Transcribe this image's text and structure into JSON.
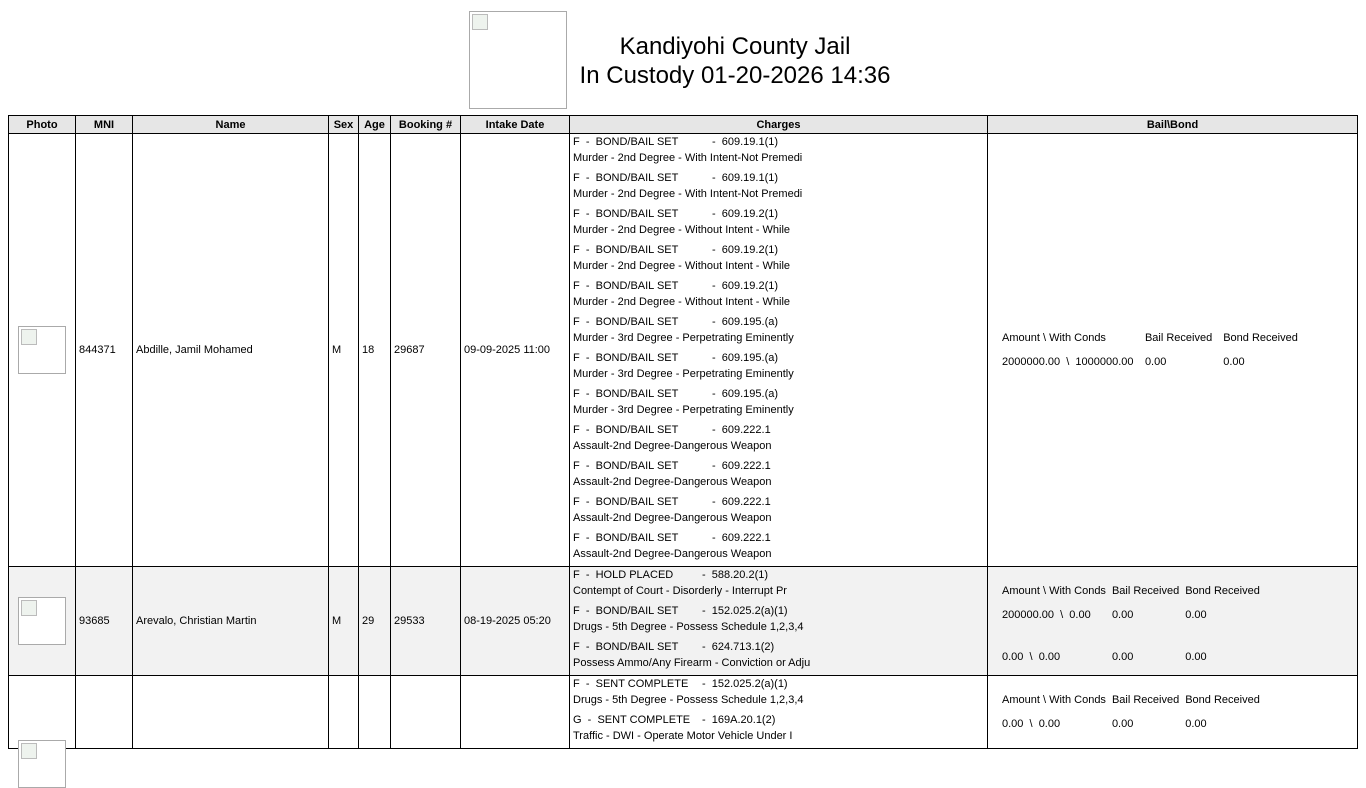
{
  "header": {
    "title": "Kandiyohi County Jail",
    "subtitle": "In Custody 01-20-2026 14:36"
  },
  "columns": [
    "Photo",
    "MNI",
    "Name",
    "Sex",
    "Age",
    "Booking #",
    "Intake Date",
    "Charges",
    "Bail\\Bond"
  ],
  "bail_headers": [
    "Amount \\ With Conds",
    "Bail Received",
    "Bond Received"
  ],
  "rows": [
    {
      "mni": "844371",
      "name": "Abdille, Jamil Mohamed",
      "sex": "M",
      "age": "18",
      "booking": "29687",
      "intake": "09-09-2025 11:00",
      "charges": [
        {
          "type": "F  -  BOND/BAIL SET",
          "statute": "-  609.19.1(1)",
          "desc": "Murder - 2nd Degree - With Intent-Not Premedi"
        },
        {
          "type": "F  -  BOND/BAIL SET",
          "statute": "-  609.19.1(1)",
          "desc": "Murder - 2nd Degree - With Intent-Not Premedi"
        },
        {
          "type": "F  -  BOND/BAIL SET",
          "statute": "-  609.19.2(1)",
          "desc": "Murder - 2nd Degree - Without Intent - While"
        },
        {
          "type": "F  -  BOND/BAIL SET",
          "statute": "-  609.19.2(1)",
          "desc": "Murder - 2nd Degree - Without Intent - While"
        },
        {
          "type": "F  -  BOND/BAIL SET",
          "statute": "-  609.19.2(1)",
          "desc": "Murder - 2nd Degree - Without Intent - While"
        },
        {
          "type": "F  -  BOND/BAIL SET",
          "statute": "-  609.195.(a)",
          "desc": "Murder - 3rd Degree - Perpetrating Eminently"
        },
        {
          "type": "F  -  BOND/BAIL SET",
          "statute": "-  609.195.(a)",
          "desc": "Murder - 3rd Degree - Perpetrating Eminently"
        },
        {
          "type": "F  -  BOND/BAIL SET",
          "statute": "-  609.195.(a)",
          "desc": "Murder - 3rd Degree - Perpetrating Eminently"
        },
        {
          "type": "F  -  BOND/BAIL SET",
          "statute": "-  609.222.1",
          "desc": "Assault-2nd Degree-Dangerous Weapon"
        },
        {
          "type": "F  -  BOND/BAIL SET",
          "statute": "-  609.222.1",
          "desc": "Assault-2nd Degree-Dangerous Weapon"
        },
        {
          "type": "F  -  BOND/BAIL SET",
          "statute": "-  609.222.1",
          "desc": "Assault-2nd Degree-Dangerous Weapon"
        },
        {
          "type": "F  -  BOND/BAIL SET",
          "statute": "-  609.222.1",
          "desc": "Assault-2nd Degree-Dangerous Weapon"
        }
      ],
      "bail": [
        {
          "amount": "2000000.00  \\  1000000.00",
          "bail_received": "0.00",
          "bond_received": "0.00"
        }
      ]
    },
    {
      "mni": "93685",
      "name": "Arevalo, Christian Martin",
      "sex": "M",
      "age": "29",
      "booking": "29533",
      "intake": "08-19-2025 05:20",
      "charges": [
        {
          "type": "F  -  HOLD PLACED",
          "statute": "-  588.20.2(1)",
          "desc": "Contempt of Court - Disorderly - Interrupt Pr"
        },
        {
          "type": "F  -  BOND/BAIL SET",
          "statute": "-  152.025.2(a)(1)",
          "desc": "Drugs - 5th Degree - Possess Schedule 1,2,3,4"
        },
        {
          "type": "F  -  BOND/BAIL SET",
          "statute": "-  624.713.1(2)",
          "desc": "Possess Ammo/Any Firearm - Conviction or Adju"
        }
      ],
      "bail": [
        {
          "amount": "200000.00  \\  0.00",
          "bail_received": "0.00",
          "bond_received": "0.00"
        },
        {
          "amount": "0.00  \\  0.00",
          "bail_received": "0.00",
          "bond_received": "0.00"
        }
      ]
    },
    {
      "mni": "",
      "name": "",
      "sex": "",
      "age": "",
      "booking": "",
      "intake": "",
      "charges": [
        {
          "type": "F  -  SENT COMPLETE",
          "statute": "-  152.025.2(a)(1)",
          "desc": "Drugs - 5th Degree - Possess Schedule 1,2,3,4"
        },
        {
          "type": "G  -  SENT COMPLETE",
          "statute": "-  169A.20.1(2)",
          "desc": "Traffic - DWI - Operate Motor Vehicle Under I"
        }
      ],
      "bail": [
        {
          "amount": "0.00  \\  0.00",
          "bail_received": "0.00",
          "bond_received": "0.00"
        }
      ]
    }
  ]
}
